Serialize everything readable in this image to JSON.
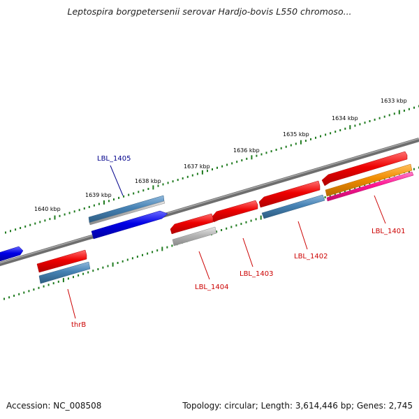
{
  "title": "Leptospira borgpetersenii serovar Hardjo-bovis L550 chromoso...",
  "footer": {
    "accession_label": "Accession:",
    "accession": "NC_008508",
    "topology_label": "Topology:",
    "topology": "circular",
    "length_label": "Length:",
    "length": "3,614,446 bp",
    "genes_label": "Genes:",
    "genes": "2,745"
  },
  "map": {
    "ticks": [
      {
        "label": "1640 kbp"
      },
      {
        "label": "1639 kbp"
      },
      {
        "label": "1638 kbp"
      },
      {
        "label": "1637 kbp"
      },
      {
        "label": "1636 kbp"
      },
      {
        "label": "1635 kbp"
      },
      {
        "label": "1634 kbp"
      },
      {
        "label": "1633 kbp"
      }
    ],
    "gene_labels": [
      {
        "text": "LBL_1405",
        "color": "#00008b"
      },
      {
        "text": "thrB",
        "color": "#cc0000"
      },
      {
        "text": "LBL_1404",
        "color": "#cc0000"
      },
      {
        "text": "LBL_1403",
        "color": "#cc0000"
      },
      {
        "text": "LBL_1402",
        "color": "#cc0000"
      },
      {
        "text": "LBL_1401",
        "color": "#cc0000"
      }
    ],
    "colors": {
      "backbone": "#808080",
      "tick_dots": "#1e7a1e",
      "forward_gene": "#0000e6",
      "reverse_gene": "#ee0000",
      "steel_blue": "#4682b4",
      "silver": "#b4b4b4",
      "orange": "#f08c00",
      "pink": "#ff1493"
    }
  }
}
